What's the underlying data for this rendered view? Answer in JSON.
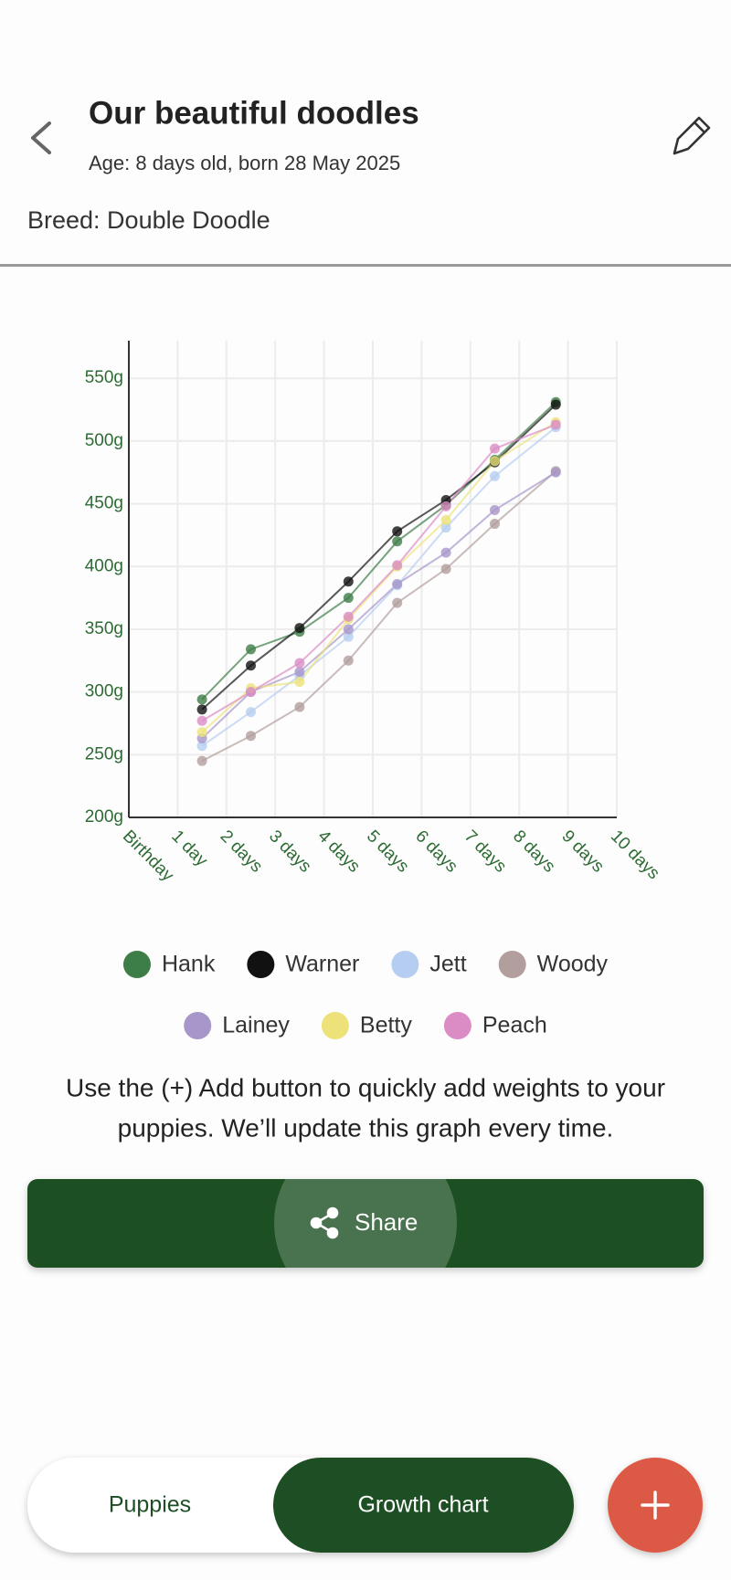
{
  "header": {
    "title": "Our beautiful doodles",
    "subtitle": "Age: 8 days old, born 28 May 2025",
    "breed": "Breed: Double Doodle"
  },
  "chart_data": {
    "type": "line",
    "x": [
      1.5,
      2.5,
      3.5,
      4.5,
      5.5,
      6.5,
      7.5,
      8.75
    ],
    "xlim": [
      0,
      10
    ],
    "xticks": [
      {
        "value": 0,
        "label": "Birthday"
      },
      {
        "value": 1,
        "label": "1 day"
      },
      {
        "value": 2,
        "label": "2 days"
      },
      {
        "value": 3,
        "label": "3 days"
      },
      {
        "value": 4,
        "label": "4 days"
      },
      {
        "value": 5,
        "label": "5 days"
      },
      {
        "value": 6,
        "label": "6 days"
      },
      {
        "value": 7,
        "label": "7 days"
      },
      {
        "value": 8,
        "label": "8 days"
      },
      {
        "value": 9,
        "label": "9 days"
      },
      {
        "value": 10,
        "label": "10 days"
      }
    ],
    "ylim": [
      200,
      580
    ],
    "yticks": [
      {
        "value": 200,
        "label": "200g"
      },
      {
        "value": 250,
        "label": "250g"
      },
      {
        "value": 300,
        "label": "300g"
      },
      {
        "value": 350,
        "label": "350g"
      },
      {
        "value": 400,
        "label": "400g"
      },
      {
        "value": 450,
        "label": "450g"
      },
      {
        "value": 500,
        "label": "500g"
      },
      {
        "value": 550,
        "label": "550g"
      }
    ],
    "grid": true,
    "series": [
      {
        "name": "Hank",
        "color": "#3d7d47",
        "values": [
          294,
          334,
          348,
          375,
          420,
          449,
          485,
          531
        ]
      },
      {
        "name": "Warner",
        "color": "#111111",
        "values": [
          286,
          321,
          351,
          388,
          428,
          453,
          483,
          529
        ]
      },
      {
        "name": "Jett",
        "color": "#b5cdf0",
        "values": [
          257,
          284,
          313,
          344,
          385,
          431,
          472,
          511
        ]
      },
      {
        "name": "Woody",
        "color": "#b29e9c",
        "values": [
          245,
          265,
          288,
          325,
          371,
          398,
          434,
          476
        ]
      },
      {
        "name": "Lainey",
        "color": "#a796c9",
        "values": [
          263,
          300,
          316,
          350,
          386,
          411,
          445,
          475
        ]
      },
      {
        "name": "Betty",
        "color": "#ede27a",
        "values": [
          268,
          303,
          308,
          358,
          400,
          437,
          484,
          515
        ]
      },
      {
        "name": "Peach",
        "color": "#db8cc4",
        "values": [
          277,
          300,
          323,
          360,
          401,
          448,
          494,
          513
        ]
      }
    ]
  },
  "info_text": [
    "Use the (+) Add button to quickly add weights to your",
    "puppies. We’ll update this graph every time."
  ],
  "share_button": "Share",
  "nav": {
    "tabs": [
      "Puppies",
      "Growth chart"
    ]
  }
}
